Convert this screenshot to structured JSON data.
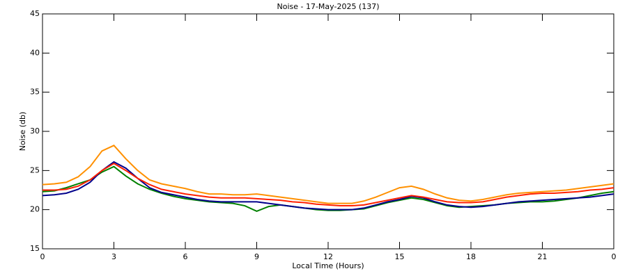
{
  "chart_data": {
    "type": "line",
    "title": "Noise - 17-May-2025 (137)",
    "xlabel": "Local Time (Hours)",
    "ylabel": "Noise (db)",
    "x": [
      0,
      0.5,
      1,
      1.5,
      2,
      2.5,
      3,
      3.5,
      4,
      4.5,
      5,
      5.5,
      6,
      6.5,
      7,
      7.5,
      8,
      8.5,
      9,
      9.5,
      10,
      10.5,
      11,
      11.5,
      12,
      12.5,
      13,
      13.5,
      14,
      14.5,
      15,
      15.5,
      16,
      16.5,
      17,
      17.5,
      18,
      18.5,
      19,
      19.5,
      20,
      20.5,
      21,
      21.5,
      22,
      22.5,
      23,
      23.5,
      24
    ],
    "series": [
      {
        "color": "#008000",
        "values": [
          22.3,
          22.4,
          22.8,
          23.3,
          23.8,
          24.8,
          25.5,
          24.3,
          23.3,
          22.6,
          22.1,
          21.7,
          21.4,
          21.2,
          21,
          20.9,
          20.8,
          20.5,
          19.8,
          20.4,
          20.6,
          20.4,
          20.2,
          20,
          19.9,
          19.9,
          20,
          20.1,
          20.5,
          20.9,
          21.2,
          21.5,
          21.3,
          20.9,
          20.5,
          20.3,
          20.4,
          20.5,
          20.6,
          20.8,
          20.9,
          21,
          21,
          21.1,
          21.3,
          21.5,
          21.8,
          22.1,
          22.3
        ]
      },
      {
        "color": "#00008b",
        "values": [
          21.8,
          21.9,
          22.1,
          22.6,
          23.5,
          25,
          26.1,
          25.3,
          24,
          22.8,
          22.2,
          21.9,
          21.6,
          21.3,
          21.1,
          21,
          21,
          21,
          21,
          20.8,
          20.6,
          20.4,
          20.2,
          20.1,
          20,
          20,
          20,
          20.2,
          20.6,
          21,
          21.3,
          21.7,
          21.5,
          21,
          20.6,
          20.4,
          20.3,
          20.4,
          20.6,
          20.8,
          21,
          21.1,
          21.2,
          21.3,
          21.4,
          21.5,
          21.6,
          21.8,
          22
        ]
      },
      {
        "color": "#ff2000",
        "values": [
          22.5,
          22.5,
          22.6,
          23,
          23.8,
          25,
          25.9,
          25,
          24,
          23.2,
          22.6,
          22.3,
          22,
          21.8,
          21.6,
          21.5,
          21.5,
          21.5,
          21.4,
          21.3,
          21.2,
          21,
          20.9,
          20.7,
          20.6,
          20.5,
          20.5,
          20.6,
          20.9,
          21.2,
          21.5,
          21.8,
          21.6,
          21.3,
          21,
          20.9,
          20.9,
          21,
          21.3,
          21.6,
          21.8,
          22,
          22.1,
          22.1,
          22.2,
          22.3,
          22.5,
          22.6,
          22.8
        ]
      },
      {
        "color": "#ff9000",
        "values": [
          23.2,
          23.3,
          23.5,
          24.2,
          25.5,
          27.5,
          28.2,
          26.5,
          25,
          23.8,
          23.3,
          23,
          22.7,
          22.3,
          22,
          22,
          21.9,
          21.9,
          22,
          21.8,
          21.6,
          21.4,
          21.2,
          21,
          20.8,
          20.8,
          20.8,
          21.1,
          21.6,
          22.2,
          22.8,
          23,
          22.6,
          22,
          21.5,
          21.2,
          21.1,
          21.3,
          21.6,
          21.9,
          22.1,
          22.2,
          22.3,
          22.4,
          22.5,
          22.7,
          22.9,
          23.1,
          23.3
        ]
      }
    ],
    "xlim": [
      0,
      24
    ],
    "xticks": [
      0,
      3,
      6,
      9,
      12,
      15,
      18,
      21,
      {
        "value": 24,
        "label": "0"
      }
    ],
    "ylim": [
      15,
      45
    ],
    "yticks": [
      15,
      20,
      25,
      30,
      35,
      40,
      45
    ],
    "grid": false
  }
}
